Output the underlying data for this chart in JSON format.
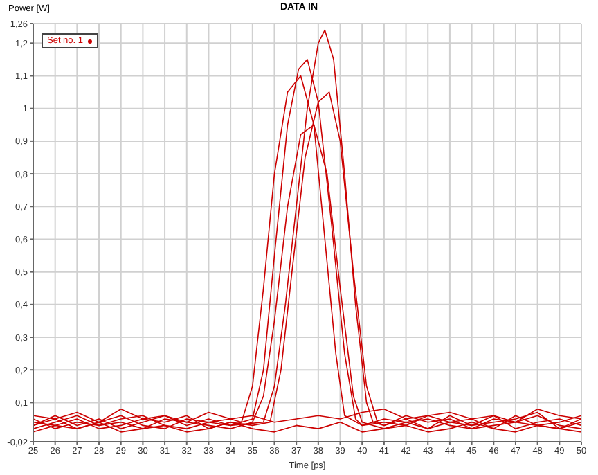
{
  "chart_data": {
    "type": "line",
    "title": "DATA IN",
    "xlabel": "Time [ps]",
    "ylabel": "Power [W]",
    "xlim": [
      25,
      50
    ],
    "xticks": [
      25,
      26,
      27,
      28,
      29,
      30,
      31,
      32,
      33,
      34,
      35,
      36,
      37,
      38,
      39,
      40,
      41,
      42,
      43,
      44,
      45,
      46,
      47,
      48,
      49,
      50
    ],
    "ylim": [
      -0.02,
      1.26
    ],
    "yticks": [
      {
        "value": -0.02,
        "label": "-0,02"
      },
      {
        "value": 0.1,
        "label": "0,1"
      },
      {
        "value": 0.2,
        "label": "0,2"
      },
      {
        "value": 0.3,
        "label": "0,3"
      },
      {
        "value": 0.4,
        "label": "0,4"
      },
      {
        "value": 0.5,
        "label": "0,5"
      },
      {
        "value": 0.6,
        "label": "0,6"
      },
      {
        "value": 0.7,
        "label": "0,7"
      },
      {
        "value": 0.8,
        "label": "0,8"
      },
      {
        "value": 0.9,
        "label": "0,9"
      },
      {
        "value": 1,
        "label": "1"
      },
      {
        "value": 1.1,
        "label": "1,1"
      },
      {
        "value": 1.2,
        "label": "1,2"
      },
      {
        "value": 1.26,
        "label": "1,26"
      }
    ],
    "grid": true,
    "legend": "top left",
    "marker": "none",
    "line_style": "solid",
    "series": [
      {
        "name": "Set no. 1",
        "color": "#cc0000",
        "x": [
          25,
          26,
          27,
          28,
          29,
          30,
          31,
          32,
          33,
          34,
          35.5,
          36,
          36.5,
          37,
          37.5,
          38,
          38.3,
          38.7,
          39.2,
          39.7,
          40.2,
          40.5,
          41,
          42,
          43,
          44,
          45,
          46,
          47,
          48,
          49,
          50
        ],
        "values": [
          0.03,
          0.05,
          0.02,
          0.04,
          0.06,
          0.03,
          0.02,
          0.05,
          0.04,
          0.03,
          0.04,
          0.15,
          0.4,
          0.7,
          1.0,
          1.2,
          1.24,
          1.15,
          0.8,
          0.4,
          0.1,
          0.04,
          0.03,
          0.05,
          0.02,
          0.04,
          0.03,
          0.06,
          0.02,
          0.04,
          0.05,
          0.03
        ]
      },
      {
        "color": "#cc0000",
        "x": [
          25,
          26,
          27,
          28,
          29,
          30,
          31,
          32,
          33,
          34,
          34.5,
          35,
          35.5,
          36,
          36.6,
          37.2,
          37.8,
          38.3,
          38.8,
          39.2,
          40,
          41,
          42,
          43,
          44,
          45,
          46,
          47,
          48,
          49,
          50
        ],
        "values": [
          0.05,
          0.02,
          0.04,
          0.03,
          0.05,
          0.06,
          0.03,
          0.02,
          0.04,
          0.05,
          0.04,
          0.15,
          0.45,
          0.8,
          1.05,
          1.1,
          0.95,
          0.6,
          0.25,
          0.06,
          0.03,
          0.05,
          0.04,
          0.02,
          0.06,
          0.03,
          0.04,
          0.05,
          0.07,
          0.02,
          0.04
        ]
      },
      {
        "color": "#cc0000",
        "x": [
          25,
          26,
          27,
          28,
          29,
          30,
          31,
          32,
          33,
          34,
          35,
          35.5,
          36,
          36.6,
          37.2,
          37.8,
          38.4,
          39,
          39.6,
          40,
          41,
          42,
          43,
          44,
          45,
          46,
          47,
          48,
          49,
          50
        ],
        "values": [
          0.02,
          0.04,
          0.06,
          0.03,
          0.04,
          0.02,
          0.05,
          0.04,
          0.03,
          0.02,
          0.04,
          0.12,
          0.35,
          0.7,
          0.92,
          0.95,
          0.8,
          0.45,
          0.12,
          0.04,
          0.02,
          0.04,
          0.05,
          0.03,
          0.02,
          0.05,
          0.04,
          0.03,
          0.02,
          0.05
        ]
      },
      {
        "color": "#cc0000",
        "x": [
          25,
          26,
          27,
          28,
          29,
          30,
          31,
          32,
          33,
          34,
          35,
          35.8,
          36.3,
          36.8,
          37.4,
          38,
          38.5,
          39,
          39.6,
          40.2,
          40.7,
          41,
          42,
          43,
          44,
          45,
          46,
          47,
          48,
          49,
          50
        ],
        "values": [
          0.04,
          0.03,
          0.05,
          0.02,
          0.03,
          0.05,
          0.04,
          0.06,
          0.02,
          0.04,
          0.03,
          0.04,
          0.2,
          0.5,
          0.85,
          1.02,
          1.05,
          0.9,
          0.5,
          0.15,
          0.04,
          0.03,
          0.06,
          0.04,
          0.05,
          0.02,
          0.03,
          0.04,
          0.06,
          0.03,
          0.02
        ]
      },
      {
        "color": "#cc0000",
        "x": [
          25,
          26,
          27,
          28,
          29,
          30,
          31,
          32,
          33,
          34,
          35,
          35.5,
          36,
          36.6,
          37.1,
          37.5,
          38,
          38.6,
          39.2,
          39.7,
          40,
          41,
          42,
          43,
          44,
          45,
          46,
          47,
          48,
          49,
          50
        ],
        "values": [
          0.03,
          0.06,
          0.03,
          0.05,
          0.02,
          0.04,
          0.06,
          0.03,
          0.05,
          0.03,
          0.05,
          0.2,
          0.55,
          0.95,
          1.12,
          1.15,
          1.02,
          0.65,
          0.25,
          0.05,
          0.03,
          0.04,
          0.03,
          0.06,
          0.04,
          0.05,
          0.02,
          0.06,
          0.03,
          0.04,
          0.06
        ]
      },
      {
        "color": "#cc0000",
        "x": [
          25,
          26,
          27,
          28,
          29,
          30,
          31,
          32,
          33,
          34,
          35,
          36,
          37,
          38,
          39,
          40,
          41,
          42,
          43,
          44,
          45,
          46,
          47,
          48,
          49,
          50
        ],
        "values": [
          0.01,
          0.03,
          0.02,
          0.04,
          0.01,
          0.02,
          0.03,
          0.01,
          0.02,
          0.04,
          0.02,
          0.01,
          0.03,
          0.02,
          0.04,
          0.01,
          0.02,
          0.03,
          0.01,
          0.02,
          0.04,
          0.02,
          0.01,
          0.03,
          0.02,
          0.01
        ]
      },
      {
        "color": "#cc0000",
        "x": [
          25,
          26,
          27,
          28,
          29,
          30,
          31,
          32,
          33,
          34,
          35,
          36,
          37,
          38,
          39,
          40,
          41,
          42,
          43,
          44,
          45,
          46,
          47,
          48,
          49,
          50
        ],
        "values": [
          0.06,
          0.05,
          0.07,
          0.04,
          0.08,
          0.05,
          0.06,
          0.04,
          0.07,
          0.05,
          0.06,
          0.04,
          0.05,
          0.06,
          0.05,
          0.07,
          0.08,
          0.05,
          0.06,
          0.07,
          0.05,
          0.06,
          0.04,
          0.08,
          0.06,
          0.05
        ]
      }
    ]
  }
}
